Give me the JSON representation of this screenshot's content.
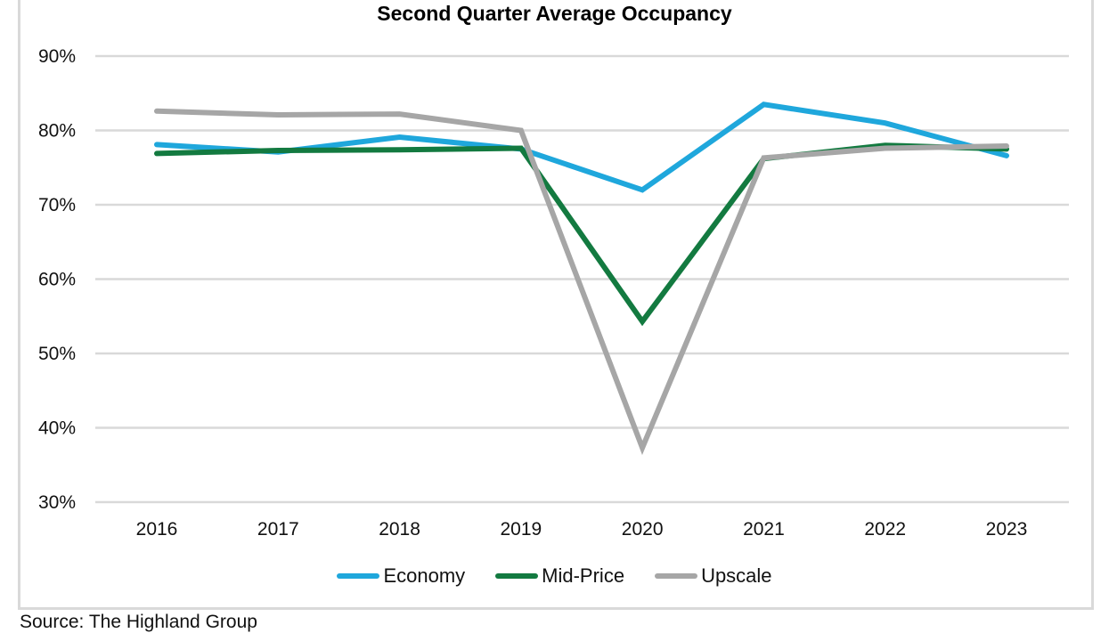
{
  "chart_data": {
    "type": "line",
    "title": "Second Quarter Average Occupancy",
    "xlabel": "",
    "ylabel": "",
    "x": [
      "2016",
      "2017",
      "2018",
      "2019",
      "2020",
      "2021",
      "2022",
      "2023"
    ],
    "ylim": [
      30,
      90
    ],
    "yticks": [
      30,
      40,
      50,
      60,
      70,
      80,
      90
    ],
    "ytick_labels": [
      "30%",
      "40%",
      "50%",
      "60%",
      "70%",
      "80%",
      "90%"
    ],
    "grid": true,
    "legend_position": "bottom",
    "series": [
      {
        "name": "Economy",
        "color": "#1fa7dc",
        "values": [
          78.1,
          77.1,
          79.1,
          77.5,
          72.0,
          83.5,
          81.0,
          76.6
        ]
      },
      {
        "name": "Mid-Price",
        "color": "#137a40",
        "values": [
          76.9,
          77.3,
          77.4,
          77.6,
          54.3,
          76.2,
          78.0,
          77.5
        ]
      },
      {
        "name": "Upscale",
        "color": "#a6a6a6",
        "values": [
          82.6,
          82.1,
          82.2,
          80.0,
          37.3,
          76.3,
          77.6,
          77.9
        ]
      }
    ]
  },
  "source_note": "Source: The Highland Group"
}
